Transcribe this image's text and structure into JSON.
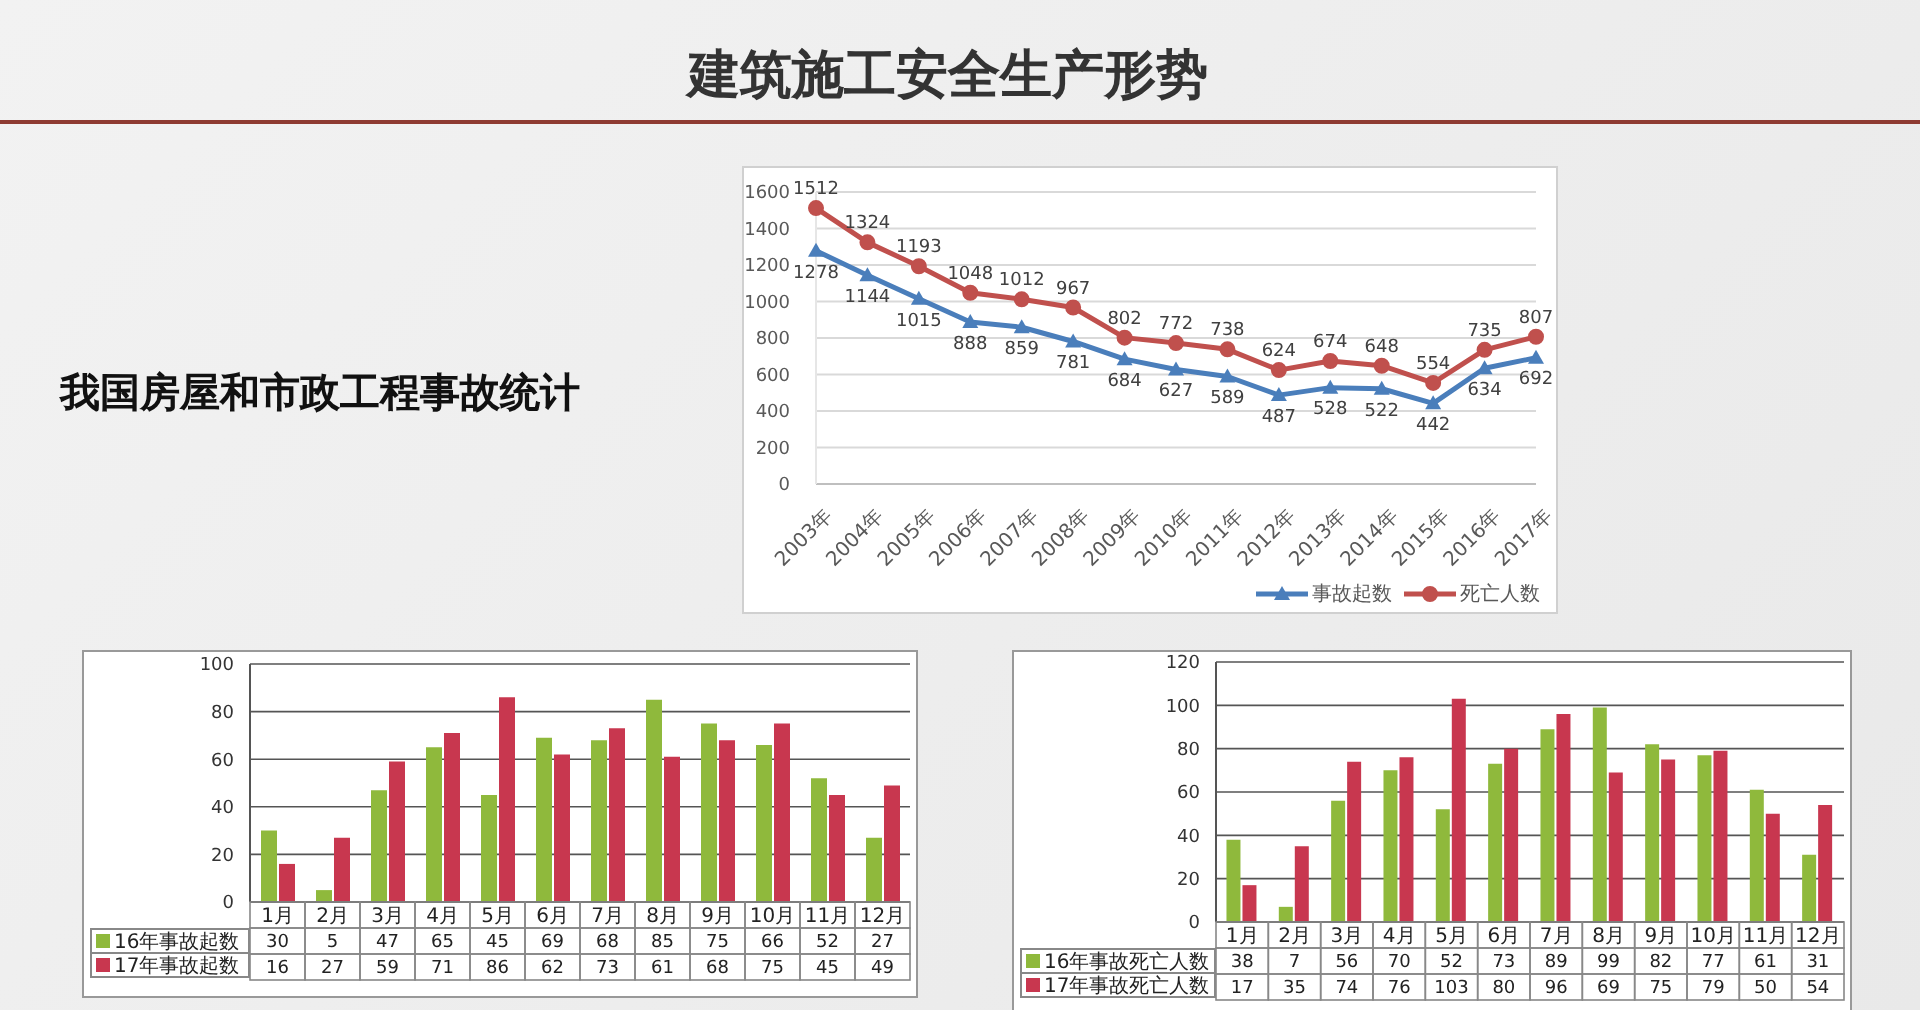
{
  "chart_data": [
    {
      "type": "line",
      "title": "建筑施工安全生产形势",
      "subtitle": "我国房屋和市政工程事故统计",
      "categories": [
        "2003年",
        "2004年",
        "2005年",
        "2006年",
        "2007年",
        "2008年",
        "2009年",
        "2010年",
        "2011年",
        "2012年",
        "2013年",
        "2014年",
        "2015年",
        "2016年",
        "2017年"
      ],
      "series": [
        {
          "name": "事故起数",
          "color": "#4a7ebb",
          "marker": "triangle",
          "values": [
            1278,
            1144,
            1015,
            888,
            859,
            781,
            684,
            627,
            589,
            487,
            528,
            522,
            442,
            634,
            692
          ]
        },
        {
          "name": "死亡人数",
          "color": "#c0504d",
          "marker": "circle",
          "values": [
            1512,
            1324,
            1193,
            1048,
            1012,
            967,
            802,
            772,
            738,
            624,
            674,
            648,
            554,
            735,
            807
          ]
        }
      ],
      "ylim": [
        0,
        1600
      ],
      "yticks": [
        0,
        200,
        400,
        600,
        800,
        1000,
        1200,
        1400,
        1600
      ],
      "grid": "y",
      "legend": "bottom right",
      "data_labels": true
    },
    {
      "type": "bar",
      "categories": [
        "1月",
        "2月",
        "3月",
        "4月",
        "5月",
        "6月",
        "7月",
        "8月",
        "9月",
        "10月",
        "11月",
        "12月"
      ],
      "series": [
        {
          "name": "16年事故起数",
          "color": "#8fb93c",
          "values": [
            30,
            5,
            47,
            65,
            45,
            69,
            68,
            85,
            75,
            66,
            52,
            27
          ]
        },
        {
          "name": "17年事故起数",
          "color": "#c8374f",
          "values": [
            16,
            27,
            59,
            71,
            86,
            62,
            73,
            61,
            68,
            75,
            45,
            49
          ]
        }
      ],
      "ylim": [
        0,
        100
      ],
      "yticks": [
        0,
        20,
        40,
        60,
        80,
        100
      ],
      "grid": "y",
      "legend": "bottom left",
      "data_labels": true
    },
    {
      "type": "bar",
      "categories": [
        "1月",
        "2月",
        "3月",
        "4月",
        "5月",
        "6月",
        "7月",
        "8月",
        "9月",
        "10月",
        "11月",
        "12月"
      ],
      "series": [
        {
          "name": "16年事故死亡人数",
          "color": "#8fb93c",
          "values": [
            38,
            7,
            56,
            70,
            52,
            73,
            89,
            99,
            82,
            77,
            61,
            31
          ]
        },
        {
          "name": "17年事故死亡人数",
          "color": "#c8374f",
          "values": [
            17,
            35,
            74,
            76,
            103,
            80,
            96,
            69,
            75,
            79,
            50,
            54
          ]
        }
      ],
      "ylim": [
        0,
        120
      ],
      "yticks": [
        0,
        20,
        40,
        60,
        80,
        100,
        120
      ],
      "grid": "y",
      "legend": "bottom left",
      "data_labels": true
    }
  ]
}
